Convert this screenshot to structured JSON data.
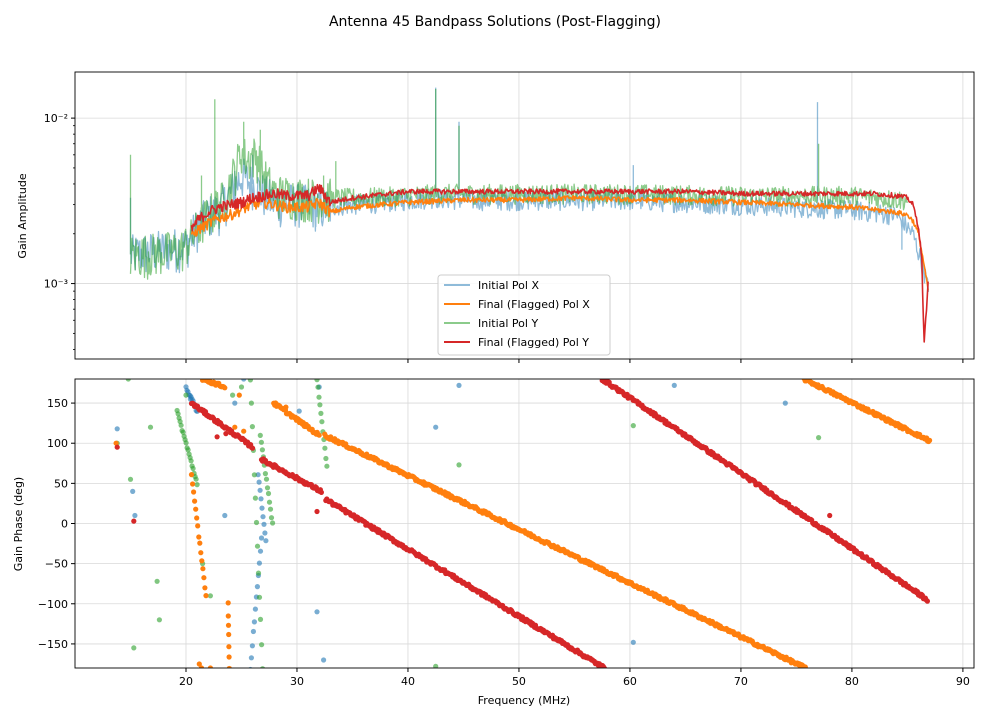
{
  "title": "Antenna 45 Bandpass Solutions (Post-Flagging)",
  "colors": {
    "initial_x": "#1f77b4",
    "final_x": "#ff7f0e",
    "initial_y": "#2ca02c",
    "final_y": "#d62728"
  },
  "chart_data": [
    {
      "type": "line",
      "panel": "amplitude",
      "title": "",
      "xlabel": "",
      "ylabel": "Gain Amplitude",
      "yscale": "log",
      "xlim": [
        10,
        91
      ],
      "ylim": [
        0.00035,
        0.019
      ],
      "xticks": [
        20,
        30,
        40,
        50,
        60,
        70,
        80,
        90
      ],
      "yticks": [
        {
          "value": 0.01,
          "label": "10⁻²"
        },
        {
          "value": 0.001,
          "label": "10⁻³"
        }
      ],
      "grid": true,
      "legend": {
        "placement": "lower-center",
        "entries": [
          "Initial Pol X",
          "Final (Flagged) Pol X",
          "Initial Pol Y",
          "Final (Flagged) Pol Y"
        ]
      },
      "series": [
        {
          "name": "Initial Pol X",
          "color_key": "initial_x",
          "alpha": 0.5,
          "x": [
            15,
            20,
            21,
            22,
            23,
            24,
            25,
            26,
            27,
            28,
            30,
            32,
            35,
            40,
            42.5,
            45,
            50,
            55,
            60,
            65,
            70,
            75,
            80,
            84,
            85.5,
            86.5,
            86.9
          ],
          "y": [
            0.0015,
            0.0017,
            0.0022,
            0.0026,
            0.0028,
            0.0035,
            0.0045,
            0.004,
            0.0035,
            0.0031,
            0.0031,
            0.0029,
            0.003,
            0.0032,
            0.0033,
            0.0032,
            0.0032,
            0.0032,
            0.0032,
            0.0031,
            0.003,
            0.0029,
            0.0028,
            0.0026,
            0.002,
            0.0012,
            0.0009
          ],
          "spikes": [
            [
              15,
              0.0033
            ],
            [
              24.4,
              0.0048
            ],
            [
              26,
              0.006
            ],
            [
              31.7,
              0.0022
            ],
            [
              42.5,
              0.0153
            ],
            [
              44.6,
              0.0095
            ],
            [
              60.3,
              0.0052
            ],
            [
              76.9,
              0.0125
            ],
            [
              84.5,
              0.0016
            ]
          ]
        },
        {
          "name": "Final (Flagged) Pol X",
          "color_key": "final_x",
          "alpha": 1,
          "x": [
            20.5,
            21,
            22,
            23,
            24,
            25,
            26,
            27,
            28,
            29,
            30,
            31,
            32,
            33,
            35,
            40,
            45,
            50,
            55,
            60,
            65,
            70,
            75,
            80,
            82,
            84,
            85,
            85.5,
            86,
            86.5,
            86.9
          ],
          "y": [
            0.0019,
            0.0021,
            0.0023,
            0.0025,
            0.0026,
            0.0028,
            0.003,
            0.0031,
            0.003,
            0.0029,
            0.0029,
            0.0029,
            0.0031,
            0.0027,
            0.0029,
            0.0031,
            0.0032,
            0.0032,
            0.0033,
            0.0032,
            0.0032,
            0.0031,
            0.003,
            0.0029,
            0.0028,
            0.0027,
            0.0026,
            0.0024,
            0.002,
            0.0013,
            0.00088
          ]
        },
        {
          "name": "Initial Pol Y",
          "color_key": "initial_y",
          "alpha": 0.55,
          "x": [
            15,
            19.5,
            20.5,
            21.5,
            22.5,
            23.5,
            24.5,
            25,
            25.5,
            26,
            26.5,
            27,
            28,
            30,
            32,
            35,
            40,
            42.5,
            45,
            50,
            60,
            70,
            77,
            80,
            85
          ],
          "y": [
            0.0015,
            0.0016,
            0.0019,
            0.0024,
            0.0028,
            0.0033,
            0.005,
            0.0065,
            0.0055,
            0.006,
            0.0058,
            0.0045,
            0.0035,
            0.0034,
            0.0033,
            0.0033,
            0.0034,
            0.0035,
            0.0035,
            0.0035,
            0.0035,
            0.0034,
            0.0034,
            0.0034,
            0.0032
          ],
          "spikes": [
            [
              15,
              0.006
            ],
            [
              21.4,
              0.0045
            ],
            [
              22.6,
              0.013
            ],
            [
              25.2,
              0.0095
            ],
            [
              26.7,
              0.0085
            ],
            [
              32.4,
              0.0045
            ],
            [
              33.5,
              0.0055
            ],
            [
              42.5,
              0.015
            ],
            [
              44.6,
              0.009
            ],
            [
              77,
              0.007
            ]
          ]
        },
        {
          "name": "Final (Flagged) Pol Y",
          "color_key": "final_y",
          "alpha": 1,
          "x": [
            20.5,
            21,
            22,
            23,
            24,
            25,
            26,
            27,
            28,
            29,
            30,
            31,
            32,
            33,
            35,
            40,
            45,
            50,
            55,
            60,
            65,
            70,
            75,
            80,
            82,
            84,
            85,
            85.5,
            86,
            86.3,
            86.5,
            86.9
          ],
          "y": [
            0.0021,
            0.0024,
            0.0027,
            0.0029,
            0.003,
            0.0031,
            0.0033,
            0.0034,
            0.0035,
            0.0034,
            0.0034,
            0.0034,
            0.0038,
            0.0031,
            0.0033,
            0.0036,
            0.0036,
            0.0036,
            0.0036,
            0.0036,
            0.0036,
            0.0035,
            0.0035,
            0.0035,
            0.0035,
            0.0034,
            0.0033,
            0.003,
            0.0022,
            0.0014,
            0.00042,
            0.0011
          ]
        }
      ]
    },
    {
      "type": "scatter",
      "panel": "phase",
      "title": "",
      "xlabel": "Frequency (MHz)",
      "ylabel": "Gain Phase (deg)",
      "xlim": [
        10,
        91
      ],
      "ylim": [
        -180,
        180
      ],
      "xticks": [
        20,
        30,
        40,
        50,
        60,
        70,
        80,
        90
      ],
      "yticks": [
        -150,
        -100,
        -50,
        0,
        50,
        100,
        150
      ],
      "grid": true,
      "series": [
        {
          "name": "Initial Pol X",
          "color_key": "initial_x",
          "alpha": 0.6,
          "segments": [
            [
              [
                25.8,
                -180
              ],
              [
                26.8,
                -20
              ]
            ],
            [
              [
                26.5,
                60
              ],
              [
                27.2,
                -20
              ]
            ],
            [
              [
                20,
                170
              ],
              [
                21,
                140
              ]
            ]
          ],
          "points": [
            [
              13.8,
              118
            ],
            [
              15.2,
              40
            ],
            [
              15.4,
              10
            ],
            [
              20.4,
              155
            ],
            [
              23.5,
              10
            ],
            [
              24.4,
              150
            ],
            [
              25.2,
              180
            ],
            [
              30.2,
              140
            ],
            [
              32,
              170
            ],
            [
              32.4,
              -170
            ],
            [
              31.8,
              -110
            ],
            [
              44.6,
              172
            ],
            [
              42.5,
              120
            ],
            [
              60.3,
              -148
            ],
            [
              64,
              172
            ],
            [
              74,
              150
            ]
          ]
        },
        {
          "name": "Final (Flagged) Pol X",
          "color_key": "final_x",
          "alpha": 1,
          "segments": [
            [
              [
                21.5,
                180
              ],
              [
                23.5,
                170
              ]
            ],
            [
              [
                27.9,
                150
              ],
              [
                32,
                110
              ]
            ],
            [
              [
                32.5,
                110
              ],
              [
                75.8,
                -180
              ]
            ],
            [
              [
                75.7,
                180
              ],
              [
                87,
                103
              ]
            ],
            [
              [
                20.5,
                60
              ],
              [
                21.8,
                -90
              ]
            ],
            [
              [
                23.8,
                -100
              ],
              [
                23.9,
                -180
              ]
            ]
          ],
          "points": [
            [
              13.7,
              100
            ],
            [
              21.2,
              -175
            ],
            [
              21.4,
              -180
            ],
            [
              22.2,
              -180
            ],
            [
              24.8,
              160
            ],
            [
              24.4,
              120
            ],
            [
              29,
              145
            ],
            [
              25.2,
              115
            ]
          ]
        },
        {
          "name": "Initial Pol Y",
          "color_key": "initial_y",
          "alpha": 0.6,
          "segments": [
            [
              [
                19.2,
                140
              ],
              [
                21,
                50
              ]
            ],
            [
              [
                25.8,
                180
              ],
              [
                26.9,
                -180
              ]
            ],
            [
              [
                31.8,
                180
              ],
              [
                32.7,
                70
              ]
            ],
            [
              [
                26.7,
                110
              ],
              [
                27.8,
                0
              ]
            ]
          ],
          "points": [
            [
              13.8,
              100
            ],
            [
              14.8,
              180
            ],
            [
              15,
              55
            ],
            [
              16.8,
              120
            ],
            [
              17.4,
              -72
            ],
            [
              17.6,
              -120
            ],
            [
              20,
              160
            ],
            [
              21.5,
              -50
            ],
            [
              24.2,
              160
            ],
            [
              22.2,
              -90
            ],
            [
              25,
              170
            ],
            [
              44.6,
              73
            ],
            [
              42.5,
              -178
            ],
            [
              60.3,
              122
            ],
            [
              77,
              107
            ],
            [
              15.3,
              -155
            ]
          ]
        },
        {
          "name": "Final (Flagged) Pol Y",
          "color_key": "final_y",
          "alpha": 1,
          "segments": [
            [
              [
                20.5,
                150
              ],
              [
                26,
                95
              ]
            ],
            [
              [
                26.8,
                80
              ],
              [
                32.2,
                40
              ]
            ],
            [
              [
                32.6,
                30
              ],
              [
                57.7,
                -180
              ]
            ],
            [
              [
                57.5,
                180
              ],
              [
                86.8,
                -95
              ]
            ]
          ],
          "points": [
            [
              13.8,
              95
            ],
            [
              15.3,
              3
            ],
            [
              22.8,
              108
            ],
            [
              23.6,
              112
            ],
            [
              31.8,
              15
            ],
            [
              78,
              10
            ]
          ]
        }
      ]
    }
  ]
}
